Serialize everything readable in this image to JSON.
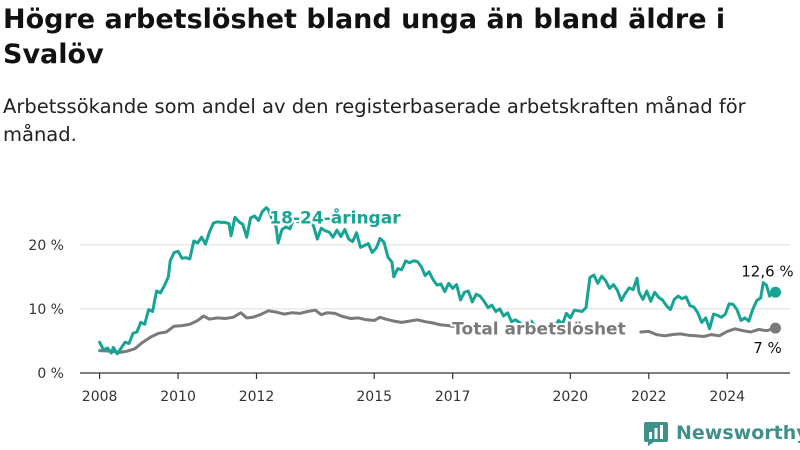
{
  "title": "Högre arbetslöshet bland unga än bland äldre i Svalöv",
  "subtitle": "Arbetssökande som andel av den registerbaserade arbetskraften månad för månad.",
  "brand": {
    "name": "Newsworthy",
    "icon": "newsworthy-logo-icon"
  },
  "colors": {
    "youth": "#17a495",
    "total": "#7a7a7a",
    "grid": "#dddddd",
    "axis": "#333333",
    "brand": "#3f8f8a"
  },
  "chart_data": {
    "type": "line",
    "x_unit": "year",
    "xlim": [
      2007.5,
      2025.6
    ],
    "ylim": [
      0,
      27
    ],
    "x_ticks": [
      {
        "value": 2008,
        "label": "2008"
      },
      {
        "value": 2010,
        "label": "2010"
      },
      {
        "value": 2012,
        "label": "2012"
      },
      {
        "value": 2015,
        "label": "2015"
      },
      {
        "value": 2017,
        "label": "2017"
      },
      {
        "value": 2020,
        "label": "2020"
      },
      {
        "value": 2022,
        "label": "2022"
      },
      {
        "value": 2024,
        "label": "2024"
      }
    ],
    "y_ticks": [
      {
        "value": 0,
        "label": "0 %"
      },
      {
        "value": 10,
        "label": "10 %"
      },
      {
        "value": 20,
        "label": "20 %"
      }
    ],
    "grid": true,
    "series": [
      {
        "name": "18-24-åringar",
        "color": "#17a495",
        "last_label": "12,6 %",
        "segments": [
          [
            [
              2008.0,
              4.8
            ],
            [
              2008.1,
              3.6
            ],
            [
              2008.2,
              3.9
            ],
            [
              2008.3,
              3.1
            ],
            [
              2008.35,
              4.0
            ],
            [
              2008.45,
              3.0
            ],
            [
              2008.55,
              3.9
            ],
            [
              2008.65,
              4.8
            ],
            [
              2008.75,
              4.6
            ],
            [
              2008.85,
              6.2
            ],
            [
              2008.95,
              6.4
            ],
            [
              2009.05,
              7.9
            ],
            [
              2009.15,
              7.6
            ],
            [
              2009.25,
              9.9
            ],
            [
              2009.35,
              9.6
            ],
            [
              2009.45,
              12.8
            ],
            [
              2009.55,
              12.5
            ],
            [
              2009.65,
              13.6
            ],
            [
              2009.75,
              15.0
            ],
            [
              2009.8,
              17.5
            ],
            [
              2009.9,
              18.8
            ],
            [
              2010.0,
              19.0
            ],
            [
              2010.1,
              17.9
            ],
            [
              2010.2,
              18.0
            ],
            [
              2010.3,
              17.8
            ],
            [
              2010.4,
              20.6
            ],
            [
              2010.5,
              20.3
            ],
            [
              2010.6,
              21.2
            ],
            [
              2010.7,
              20.1
            ],
            [
              2010.8,
              22.0
            ],
            [
              2010.9,
              23.4
            ],
            [
              2011.0,
              23.6
            ],
            [
              2011.1,
              23.5
            ],
            [
              2011.2,
              23.5
            ],
            [
              2011.3,
              23.3
            ],
            [
              2011.35,
              21.4
            ],
            [
              2011.45,
              24.3
            ],
            [
              2011.55,
              23.6
            ],
            [
              2011.65,
              23.2
            ],
            [
              2011.75,
              21.2
            ],
            [
              2011.85,
              24.2
            ],
            [
              2011.95,
              24.5
            ],
            [
              2012.05,
              23.8
            ],
            [
              2012.15,
              25.2
            ],
            [
              2012.25,
              25.8
            ],
            [
              2012.3,
              25.5
            ],
            [
              2012.4,
              24.0
            ],
            [
              2012.5,
              22.8
            ],
            [
              2012.55,
              20.3
            ],
            [
              2012.65,
              22.4
            ],
            [
              2012.75,
              22.8
            ],
            [
              2012.85,
              22.5
            ],
            [
              2012.95,
              24.1
            ],
            [
              2013.05,
              23.6
            ],
            [
              2013.15,
              24.0
            ],
            [
              2013.25,
              23.9
            ],
            [
              2013.35,
              23.5
            ],
            [
              2013.45,
              23.0
            ],
            [
              2013.55,
              20.9
            ],
            [
              2013.65,
              22.6
            ],
            [
              2013.75,
              22.2
            ],
            [
              2013.85,
              22.0
            ],
            [
              2013.95,
              21.2
            ],
            [
              2014.05,
              22.3
            ],
            [
              2014.15,
              21.3
            ],
            [
              2014.25,
              22.4
            ],
            [
              2014.35,
              20.9
            ],
            [
              2014.45,
              20.5
            ],
            [
              2014.55,
              21.9
            ],
            [
              2014.65,
              19.6
            ],
            [
              2014.75,
              19.9
            ],
            [
              2014.85,
              20.2
            ],
            [
              2014.95,
              18.8
            ],
            [
              2015.05,
              19.5
            ],
            [
              2015.15,
              21.0
            ],
            [
              2015.25,
              20.4
            ],
            [
              2015.35,
              18.1
            ],
            [
              2015.45,
              17.3
            ],
            [
              2015.5,
              15.0
            ],
            [
              2015.6,
              16.3
            ],
            [
              2015.7,
              16.1
            ],
            [
              2015.8,
              17.5
            ],
            [
              2015.9,
              17.2
            ],
            [
              2016.0,
              17.5
            ],
            [
              2016.1,
              17.4
            ],
            [
              2016.2,
              16.6
            ],
            [
              2016.3,
              15.2
            ],
            [
              2016.4,
              15.8
            ],
            [
              2016.5,
              14.6
            ],
            [
              2016.6,
              13.7
            ],
            [
              2016.7,
              13.9
            ],
            [
              2016.8,
              12.7
            ],
            [
              2016.9,
              14.0
            ],
            [
              2017.0,
              13.2
            ],
            [
              2017.1,
              13.8
            ],
            [
              2017.2,
              11.4
            ],
            [
              2017.3,
              12.6
            ],
            [
              2017.4,
              12.8
            ],
            [
              2017.5,
              11.1
            ],
            [
              2017.6,
              12.3
            ],
            [
              2017.7,
              12.0
            ],
            [
              2017.8,
              11.2
            ],
            [
              2017.9,
              10.2
            ],
            [
              2018.0,
              10.6
            ],
            [
              2018.1,
              9.6
            ],
            [
              2018.2,
              10.0
            ],
            [
              2018.3,
              8.9
            ],
            [
              2018.4,
              9.4
            ],
            [
              2018.5,
              8.0
            ],
            [
              2018.6,
              8.3
            ],
            [
              2018.7,
              7.9
            ],
            [
              2018.8,
              7.4
            ],
            [
              2018.9,
              7.7
            ],
            [
              2019.0,
              8.1
            ],
            [
              2019.1,
              7.4
            ]
          ],
          [
            [
              2019.6,
              7.2
            ],
            [
              2019.7,
              8.2
            ],
            [
              2019.8,
              7.6
            ],
            [
              2019.9,
              9.3
            ],
            [
              2020.0,
              8.6
            ],
            [
              2020.1,
              9.8
            ],
            [
              2020.2,
              9.7
            ],
            [
              2020.3,
              9.6
            ],
            [
              2020.4,
              10.2
            ],
            [
              2020.5,
              14.9
            ],
            [
              2020.6,
              15.3
            ],
            [
              2020.7,
              14.0
            ],
            [
              2020.8,
              15.1
            ],
            [
              2020.9,
              14.4
            ],
            [
              2021.0,
              13.2
            ],
            [
              2021.1,
              13.8
            ],
            [
              2021.2,
              12.9
            ],
            [
              2021.3,
              11.3
            ],
            [
              2021.4,
              12.4
            ],
            [
              2021.5,
              13.3
            ],
            [
              2021.6,
              13.0
            ],
            [
              2021.7,
              14.8
            ],
            [
              2021.75,
              12.6
            ],
            [
              2021.85,
              11.5
            ],
            [
              2021.95,
              12.8
            ],
            [
              2022.05,
              11.2
            ],
            [
              2022.15,
              12.6
            ],
            [
              2022.25,
              11.8
            ],
            [
              2022.35,
              11.4
            ],
            [
              2022.45,
              10.5
            ],
            [
              2022.55,
              9.9
            ],
            [
              2022.65,
              11.5
            ],
            [
              2022.75,
              12.0
            ],
            [
              2022.85,
              11.6
            ],
            [
              2022.95,
              11.9
            ],
            [
              2023.05,
              10.5
            ],
            [
              2023.15,
              10.3
            ],
            [
              2023.25,
              9.4
            ],
            [
              2023.35,
              7.9
            ],
            [
              2023.45,
              8.6
            ],
            [
              2023.55,
              6.9
            ],
            [
              2023.65,
              9.2
            ],
            [
              2023.75,
              9.0
            ],
            [
              2023.85,
              8.7
            ],
            [
              2023.95,
              9.2
            ],
            [
              2024.05,
              10.8
            ],
            [
              2024.15,
              10.7
            ],
            [
              2024.25,
              9.9
            ],
            [
              2024.35,
              8.2
            ],
            [
              2024.45,
              8.6
            ],
            [
              2024.55,
              8.1
            ],
            [
              2024.65,
              9.9
            ],
            [
              2024.75,
              11.3
            ],
            [
              2024.85,
              11.7
            ],
            [
              2024.92,
              14.1
            ],
            [
              2025.0,
              13.7
            ],
            [
              2025.08,
              12.0
            ],
            [
              2025.16,
              12.7
            ],
            [
              2025.23,
              12.6
            ]
          ]
        ]
      },
      {
        "name": "Total arbetslöshet",
        "color": "#7a7a7a",
        "last_label": "7 %",
        "segments": [
          [
            [
              2008.0,
              3.5
            ],
            [
              2008.3,
              3.4
            ],
            [
              2008.5,
              3.2
            ],
            [
              2008.7,
              3.4
            ],
            [
              2008.9,
              3.8
            ],
            [
              2009.1,
              4.8
            ],
            [
              2009.3,
              5.6
            ],
            [
              2009.5,
              6.2
            ],
            [
              2009.7,
              6.4
            ],
            [
              2009.9,
              7.3
            ],
            [
              2010.1,
              7.4
            ],
            [
              2010.3,
              7.6
            ],
            [
              2010.5,
              8.2
            ],
            [
              2010.65,
              8.9
            ],
            [
              2010.8,
              8.4
            ],
            [
              2011.0,
              8.6
            ],
            [
              2011.2,
              8.5
            ],
            [
              2011.4,
              8.7
            ],
            [
              2011.6,
              9.4
            ],
            [
              2011.75,
              8.6
            ],
            [
              2011.9,
              8.7
            ],
            [
              2012.1,
              9.1
            ],
            [
              2012.3,
              9.7
            ],
            [
              2012.5,
              9.5
            ],
            [
              2012.7,
              9.2
            ],
            [
              2012.9,
              9.4
            ],
            [
              2013.1,
              9.3
            ],
            [
              2013.3,
              9.6
            ],
            [
              2013.5,
              9.8
            ],
            [
              2013.65,
              9.1
            ],
            [
              2013.8,
              9.4
            ],
            [
              2014.0,
              9.3
            ],
            [
              2014.2,
              8.8
            ],
            [
              2014.4,
              8.5
            ],
            [
              2014.6,
              8.6
            ],
            [
              2014.8,
              8.3
            ],
            [
              2015.0,
              8.2
            ],
            [
              2015.15,
              8.7
            ],
            [
              2015.3,
              8.4
            ],
            [
              2015.5,
              8.1
            ],
            [
              2015.7,
              7.9
            ],
            [
              2015.9,
              8.1
            ],
            [
              2016.1,
              8.3
            ],
            [
              2016.3,
              8.0
            ],
            [
              2016.5,
              7.8
            ],
            [
              2016.7,
              7.5
            ],
            [
              2016.9,
              7.4
            ],
            [
              2017.1,
              7.2
            ]
          ],
          [
            [
              2021.8,
              6.4
            ],
            [
              2022.0,
              6.5
            ],
            [
              2022.2,
              6.0
            ],
            [
              2022.4,
              5.8
            ],
            [
              2022.6,
              6.0
            ],
            [
              2022.8,
              6.1
            ],
            [
              2023.0,
              5.9
            ],
            [
              2023.2,
              5.8
            ],
            [
              2023.4,
              5.7
            ],
            [
              2023.6,
              6.0
            ],
            [
              2023.8,
              5.8
            ],
            [
              2024.0,
              6.5
            ],
            [
              2024.2,
              6.9
            ],
            [
              2024.4,
              6.6
            ],
            [
              2024.6,
              6.4
            ],
            [
              2024.8,
              6.8
            ],
            [
              2025.0,
              6.6
            ],
            [
              2025.23,
              7.0
            ]
          ]
        ]
      }
    ],
    "annotations": [
      {
        "series": "18-24-åringar",
        "text": "18-24-åringar",
        "x": 2014.0,
        "y": 23.3
      },
      {
        "series": "Total arbetslöshet",
        "text": "Total arbetslöshet",
        "x": 2019.2,
        "y": 6.0
      }
    ]
  }
}
